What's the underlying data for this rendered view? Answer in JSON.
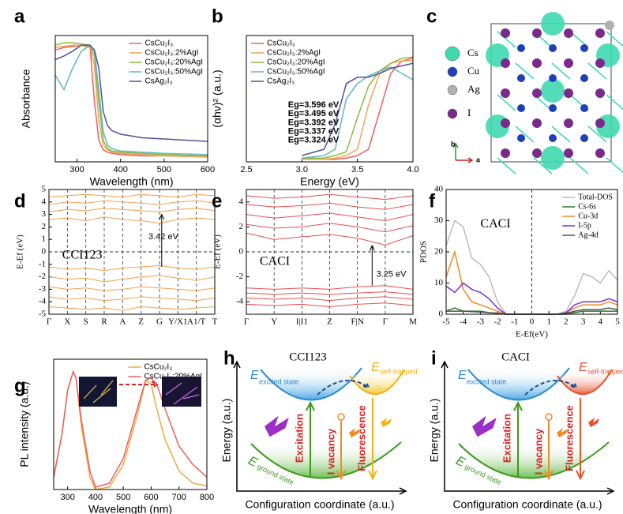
{
  "chart_data": [
    {
      "type": "line",
      "panel_label": "a",
      "ylabel": "Absorbance",
      "xlabel": "Wavelength (nm)",
      "x": [
        250,
        270,
        290,
        310,
        330,
        340,
        350,
        360,
        370,
        380,
        400,
        450,
        500,
        600
      ],
      "xlim": [
        250,
        600
      ],
      "xticks": [
        300,
        400,
        500,
        600
      ],
      "ylim": [
        0,
        1.05
      ],
      "legend": "upper right",
      "series": [
        {
          "name": "CsCu₂I₃",
          "color": "#f0605d",
          "values": [
            0.93,
            0.95,
            0.96,
            0.97,
            0.95,
            0.5,
            0.18,
            0.1,
            0.08,
            0.07,
            0.06,
            0.05,
            0.05,
            0.04
          ]
        },
        {
          "name": "CsCu₂I₃:2%AgI",
          "color": "#f4a259",
          "values": [
            0.95,
            0.96,
            0.97,
            0.97,
            0.96,
            0.8,
            0.35,
            0.14,
            0.1,
            0.08,
            0.07,
            0.06,
            0.05,
            0.04
          ]
        },
        {
          "name": "CsCu₂I₃:20%AgI",
          "color": "#8dbb3c",
          "values": [
            0.97,
            0.99,
            0.99,
            0.98,
            0.97,
            0.88,
            0.5,
            0.18,
            0.11,
            0.09,
            0.08,
            0.07,
            0.06,
            0.05
          ]
        },
        {
          "name": "CsCu₂I₃:50%AgI",
          "color": "#5fb9c2",
          "values": [
            0.72,
            0.6,
            0.78,
            0.92,
            0.97,
            0.92,
            0.6,
            0.25,
            0.14,
            0.11,
            0.09,
            0.08,
            0.07,
            0.06
          ]
        },
        {
          "name": "CsAg₂I₃",
          "color": "#55509a",
          "values": [
            0.85,
            0.88,
            0.92,
            0.97,
            0.97,
            0.93,
            0.78,
            0.42,
            0.3,
            0.26,
            0.23,
            0.2,
            0.19,
            0.17
          ]
        }
      ]
    },
    {
      "type": "line",
      "panel_label": "b",
      "ylabel": "(αhν)² (a.u.)",
      "xlabel": "Energy (eV)",
      "x": [
        3.0,
        3.2,
        3.3,
        3.4,
        3.5,
        3.6,
        3.7,
        3.8,
        3.9,
        4.0
      ],
      "xlim": [
        2.5,
        4.0
      ],
      "xticks": [
        2.5,
        {
          "value": 3,
          "label": "3.0"
        },
        3.5,
        {
          "value": 4,
          "label": "4.0"
        }
      ],
      "ylim": [
        0,
        1
      ],
      "legend": "upper left",
      "annotations": [
        "Eg=3.596 eV",
        "Eg=3.495 eV",
        "Eg=3.392 eV",
        "Eg=3.337 eV",
        "Eg=3.324 eV"
      ],
      "series": [
        {
          "name": "CsCu₂I₃",
          "color": "#f0605d",
          "values": [
            0.02,
            0.02,
            0.02,
            0.03,
            0.05,
            0.1,
            0.4,
            0.7,
            0.8,
            0.82
          ]
        },
        {
          "name": "CsCu₂I₃:2%AgI",
          "color": "#f4a259",
          "values": [
            0.02,
            0.02,
            0.03,
            0.05,
            0.1,
            0.45,
            0.7,
            0.78,
            0.8,
            0.8
          ]
        },
        {
          "name": "CsCu₂I₃:20%AgI",
          "color": "#8dbb3c",
          "values": [
            0.03,
            0.03,
            0.05,
            0.08,
            0.35,
            0.6,
            0.72,
            0.78,
            0.82,
            0.83
          ]
        },
        {
          "name": "CsCu₂I₃:50%AgI",
          "color": "#5fb9c2",
          "values": [
            0.03,
            0.05,
            0.1,
            0.5,
            0.62,
            0.68,
            0.72,
            0.75,
            0.7,
            0.65
          ]
        },
        {
          "name": "CsAg₂I₃",
          "color": "#55509a",
          "values": [
            0.05,
            0.1,
            0.3,
            0.62,
            0.67,
            0.67,
            0.7,
            0.74,
            0.76,
            0.78
          ]
        }
      ]
    },
    {
      "type": "line",
      "panel_label": "d",
      "ylabel": "E-Ef (eV)",
      "categories": [
        "Γ",
        "X",
        "S",
        "R",
        "A",
        "Z",
        "G",
        "Y/X1",
        "A1/T",
        "T"
      ],
      "ylim": [
        -5,
        5
      ],
      "yticks": [
        -5,
        -4,
        -3,
        -2,
        -1,
        0,
        1,
        2,
        3,
        4,
        5
      ],
      "color": "#f5a04a",
      "grid": true,
      "zero_line": true,
      "annotations": [
        "CCI123",
        "3.42 eV"
      ],
      "series": [
        {
          "values": [
            2.6,
            2.7,
            2.5,
            2.8,
            2.6,
            2.5,
            2.3,
            2.6,
            2.7,
            2.6
          ]
        },
        {
          "values": [
            3.2,
            3.4,
            3.3,
            3.5,
            3.4,
            3.3,
            3.2,
            3.4,
            3.5,
            3.3
          ]
        },
        {
          "values": [
            3.8,
            4.0,
            3.9,
            4.1,
            4.0,
            3.9,
            3.8,
            4.0,
            4.1,
            3.9
          ]
        },
        {
          "values": [
            4.4,
            4.5,
            4.6,
            4.5,
            4.4,
            4.6,
            4.5,
            4.4,
            4.6,
            4.5
          ]
        },
        {
          "values": [
            -1.2,
            -1.4,
            -1.3,
            -1.5,
            -1.3,
            -1.2,
            -1.1,
            -1.3,
            -1.4,
            -1.2
          ]
        },
        {
          "values": [
            -2.0,
            -2.2,
            -2.1,
            -2.4,
            -2.2,
            -2.0,
            -1.9,
            -2.1,
            -2.3,
            -2.0
          ]
        },
        {
          "values": [
            -2.8,
            -3.0,
            -2.9,
            -3.1,
            -3.0,
            -2.8,
            -2.9,
            -3.0,
            -3.1,
            -2.9
          ]
        },
        {
          "values": [
            -3.6,
            -3.8,
            -3.7,
            -3.9,
            -3.8,
            -3.6,
            -3.7,
            -3.8,
            -3.9,
            -3.7
          ]
        },
        {
          "values": [
            -4.4,
            -4.5,
            -4.6,
            -4.5,
            -4.7,
            -4.4,
            -4.5,
            -4.6,
            -4.5,
            -4.4
          ]
        }
      ]
    },
    {
      "type": "line",
      "panel_label": "e",
      "ylabel": "E-Ef (eV)",
      "categories": [
        "Γ",
        "Y",
        "I|I1",
        "Z",
        "F|N",
        "Γ",
        "M"
      ],
      "ylim": [
        -5,
        5
      ],
      "yticks": [
        -4,
        -2,
        0,
        2,
        4
      ],
      "color": "#e8504f",
      "grid": true,
      "zero_line": true,
      "annotations": [
        "CACI",
        "3.25 eV"
      ],
      "series": [
        {
          "values": [
            1.5,
            1.0,
            1.2,
            1.4,
            1.1,
            0.55,
            1.3
          ]
        },
        {
          "values": [
            2.2,
            1.9,
            2.0,
            2.3,
            2.0,
            1.6,
            2.1
          ]
        },
        {
          "values": [
            3.0,
            2.7,
            2.9,
            3.1,
            2.8,
            2.5,
            3.0
          ]
        },
        {
          "values": [
            3.8,
            3.6,
            3.7,
            3.9,
            3.6,
            3.4,
            3.8
          ]
        },
        {
          "values": [
            4.5,
            4.3,
            4.4,
            4.6,
            4.4,
            4.2,
            4.5
          ]
        },
        {
          "values": [
            -2.9,
            -3.0,
            -2.9,
            -3.0,
            -2.8,
            -2.7,
            -3.0
          ]
        },
        {
          "values": [
            -3.3,
            -3.4,
            -3.3,
            -3.4,
            -3.3,
            -3.2,
            -3.4
          ]
        },
        {
          "values": [
            -3.7,
            -3.8,
            -3.7,
            -3.9,
            -3.7,
            -3.6,
            -3.8
          ]
        },
        {
          "values": [
            -4.2,
            -4.3,
            -4.2,
            -4.4,
            -4.2,
            -4.1,
            -4.3
          ]
        }
      ]
    },
    {
      "type": "line",
      "panel_label": "f",
      "ylabel": "PDOS",
      "xlabel": "E-Ef(eV)",
      "x": [
        -5,
        -4.5,
        -4,
        -3.5,
        -3,
        -2.5,
        -2,
        -1.5,
        -1,
        -0.5,
        0,
        0.5,
        1,
        1.5,
        2,
        2.5,
        3,
        3.5,
        4,
        4.5,
        5
      ],
      "xlim": [
        -5,
        5
      ],
      "xticks": [
        -5,
        -4,
        -3,
        -2,
        -1,
        0,
        1,
        2,
        3,
        4,
        5
      ],
      "ylim": [
        0,
        40
      ],
      "yticks": [
        0,
        10,
        20,
        30,
        40
      ],
      "legend": "upper right",
      "zero_line": true,
      "annotations": [
        "CACI"
      ],
      "series": [
        {
          "name": "Total-DOS",
          "color": "#bdbdbd",
          "values": [
            22,
            30,
            28,
            18,
            16,
            12,
            4,
            0,
            0,
            0,
            0,
            0,
            0,
            0,
            1,
            6,
            13,
            12,
            10,
            14,
            11
          ]
        },
        {
          "name": "Cs-6s",
          "color": "#2d7a2d",
          "values": [
            1,
            2,
            1,
            1,
            1,
            0.5,
            0.3,
            0,
            0,
            0,
            0,
            0,
            0,
            0,
            0,
            0.5,
            1,
            1,
            1,
            1,
            1
          ]
        },
        {
          "name": "Cu-3d",
          "color": "#f08a24",
          "values": [
            12,
            20,
            8,
            4,
            3,
            2,
            1,
            0,
            0,
            0,
            0,
            0,
            0,
            0,
            0.5,
            2,
            3,
            3,
            3,
            4,
            3
          ]
        },
        {
          "name": "I-5p",
          "color": "#7a2fd6",
          "values": [
            9,
            7,
            10,
            8,
            7,
            5,
            2,
            0,
            0,
            0,
            0,
            0,
            0,
            0,
            0.5,
            3,
            4,
            4,
            4,
            5,
            4
          ]
        },
        {
          "name": "Ag-4d",
          "color": "#555555",
          "values": [
            1,
            1,
            1,
            0.8,
            0.7,
            0.5,
            0.3,
            0,
            0,
            0,
            0,
            0,
            0,
            0,
            0.3,
            1,
            1.5,
            1.5,
            1.5,
            2,
            1.5
          ]
        }
      ]
    },
    {
      "type": "line",
      "panel_label": "g",
      "ylabel": "PL intensity (a.u.)",
      "xlabel": "Wavelength (nm)",
      "x": [
        250,
        280,
        300,
        320,
        330,
        350,
        380,
        400,
        450,
        500,
        550,
        580,
        600,
        620,
        650,
        700,
        750,
        800
      ],
      "xlim": [
        250,
        800
      ],
      "xticks": [
        300,
        400,
        500,
        600,
        700,
        800
      ],
      "ylim": [
        0,
        1.05
      ],
      "legend": "upper right",
      "series": [
        {
          "name": "CsCu₂I₃",
          "color": "#f2a93b",
          "values": [
            0.1,
            0.45,
            0.8,
            0.95,
            0.9,
            0.5,
            0.1,
            0.0,
            0.02,
            0.2,
            0.6,
            0.88,
            0.85,
            0.65,
            0.4,
            0.15,
            0.05,
            0.03
          ]
        },
        {
          "name": "CsCu₂I₃:20%AgI",
          "color": "#ef5f5f",
          "values": [
            0.1,
            0.45,
            0.8,
            0.95,
            0.9,
            0.55,
            0.15,
            0.02,
            0.05,
            0.25,
            0.65,
            0.88,
            0.9,
            0.85,
            0.65,
            0.35,
            0.2,
            0.1
          ]
        }
      ]
    }
  ],
  "diagrams": [
    {
      "panel_label": "c",
      "legend": [
        "Cs",
        "Cu",
        "Ag",
        "I"
      ],
      "axis_labels": [
        "b",
        "a"
      ]
    },
    {
      "panel_label": "h",
      "title": "CCI123",
      "excited_symbol": "E",
      "excited_label": "excited state",
      "trapped_symbol": "E",
      "trapped_label": "self-trapped",
      "ground_symbol": "E",
      "ground_label": "ground state",
      "excitation": "Excitation",
      "vacancy": "I vacancy",
      "fluorescence": "Fluorescence",
      "ylabel": "Energy (a.u.)",
      "xlabel": "Configuration coordinate (a.u.)"
    },
    {
      "panel_label": "i",
      "title": "CACI",
      "excited_symbol": "E",
      "excited_label": "excited state",
      "trapped_symbol": "E",
      "trapped_label": "self-trapped",
      "ground_symbol": "E",
      "ground_label": "ground state",
      "excitation": "Excitation",
      "vacancy": "I vacancy",
      "fluorescence": "Fluorescence",
      "ylabel": "Energy (a.u.)",
      "xlabel": "Configuration coordinate (a.u.)"
    }
  ]
}
